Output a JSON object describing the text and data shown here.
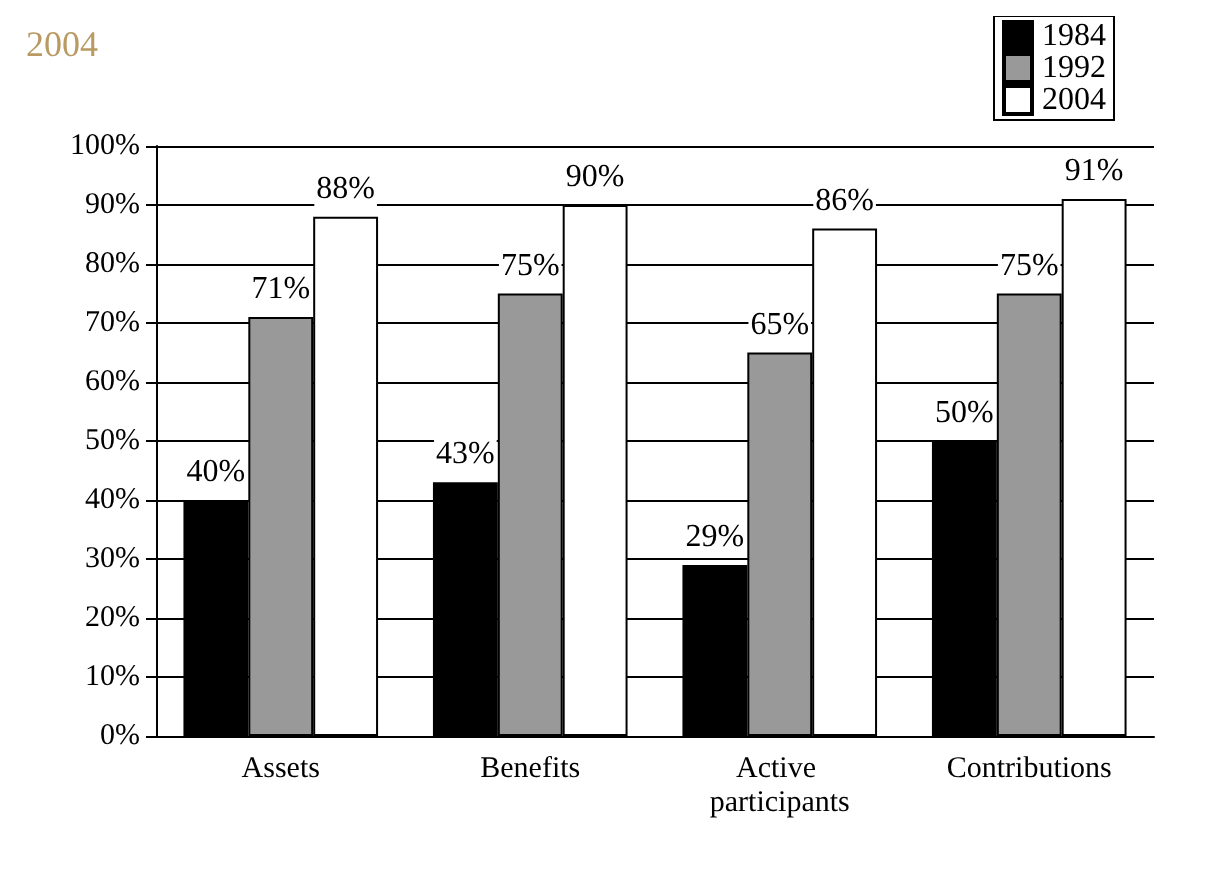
{
  "chart_data": {
    "type": "bar",
    "title": "2004",
    "categories": [
      "Assets",
      "Benefits",
      "Active participants",
      "Contributions"
    ],
    "series": [
      {
        "name": "1984",
        "color": "#000000",
        "values": [
          40,
          43,
          29,
          50
        ],
        "value_labels": [
          "40%",
          "43%",
          "29%",
          "50%"
        ]
      },
      {
        "name": "1992",
        "color": "#999999",
        "values": [
          71,
          75,
          65,
          75
        ],
        "value_labels": [
          "71%",
          "75%",
          "65%",
          "75%"
        ]
      },
      {
        "name": "2004",
        "color": "#ffffff",
        "values": [
          88,
          90,
          86,
          91
        ],
        "value_labels": [
          "88%",
          "90%",
          "86%",
          "91%"
        ]
      }
    ],
    "ylim": [
      0,
      100
    ],
    "yticks": [
      {
        "value": 0,
        "label": "0%"
      },
      {
        "value": 10,
        "label": "10%"
      },
      {
        "value": 20,
        "label": "20%"
      },
      {
        "value": 30,
        "label": "30%"
      },
      {
        "value": 40,
        "label": "40%"
      },
      {
        "value": 50,
        "label": "50%"
      },
      {
        "value": 60,
        "label": "60%"
      },
      {
        "value": 70,
        "label": "70%"
      },
      {
        "value": 80,
        "label": "80%"
      },
      {
        "value": 90,
        "label": "90%"
      },
      {
        "value": 100,
        "label": "100%"
      }
    ],
    "grid": "y",
    "legend": "top right"
  }
}
